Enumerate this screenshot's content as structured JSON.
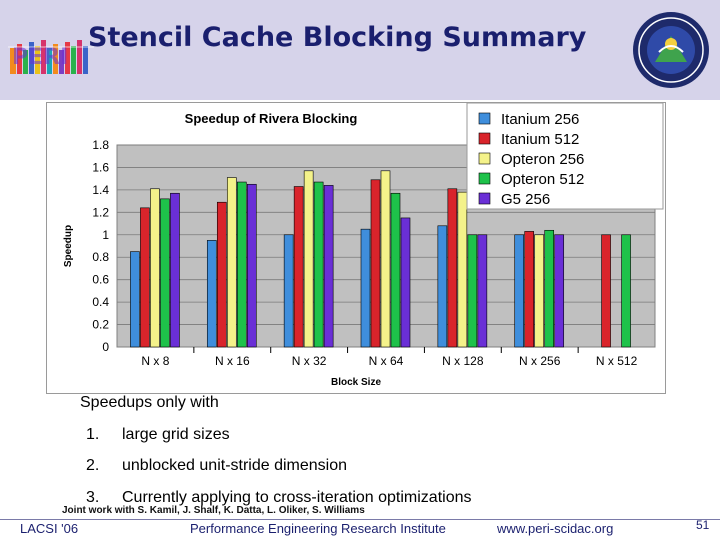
{
  "slide": {
    "title": "Stencil Cache Blocking Summary",
    "logo_text": "PERI"
  },
  "chart_data": {
    "type": "bar",
    "title": "Speedup of Rivera Blocking",
    "xlabel": "Block Size",
    "ylabel": "Speedup",
    "ylim": [
      0,
      1.8
    ],
    "yticks": [
      0,
      0.2,
      0.4,
      0.6,
      0.8,
      1,
      1.2,
      1.4,
      1.6,
      1.8
    ],
    "ytick_labels": [
      "0",
      "0.2",
      "0.4",
      "0.6",
      "0.8",
      "1",
      "1.2",
      "1.4",
      "1.6",
      "1.8"
    ],
    "grid": true,
    "legend_position": "top-right",
    "categories": [
      "N x 8",
      "N x 16",
      "N x 32",
      "N x 64",
      "N x 128",
      "N x 256",
      "N x 512"
    ],
    "series": [
      {
        "name": "Itanium 256",
        "color": "#3f8edc",
        "values": [
          0.85,
          0.95,
          1.0,
          1.05,
          1.08,
          1.0,
          null
        ]
      },
      {
        "name": "Itanium 512",
        "color": "#d9242b",
        "values": [
          1.24,
          1.29,
          1.43,
          1.49,
          1.41,
          1.03,
          1.0
        ]
      },
      {
        "name": "Opteron 256",
        "color": "#f4f28a",
        "values": [
          1.41,
          1.51,
          1.57,
          1.57,
          1.38,
          1.0,
          null
        ]
      },
      {
        "name": "Opteron 512",
        "color": "#1ec24a",
        "values": [
          1.32,
          1.47,
          1.47,
          1.37,
          1.0,
          1.04,
          1.0
        ]
      },
      {
        "name": "G5 256",
        "color": "#6a2fd6",
        "values": [
          1.37,
          1.45,
          1.44,
          1.15,
          1.0,
          1.0,
          null
        ]
      }
    ]
  },
  "body": {
    "intro": "Speedups only with",
    "items": [
      {
        "num": "1.",
        "text": "large grid sizes"
      },
      {
        "num": "2.",
        "text": "unblocked unit-stride dimension"
      },
      {
        "num": "3.",
        "text": "Currently applying to cross-iteration optimizations"
      }
    ],
    "credit": "Joint work with S. Kamil, J. Shalf, K. Datta, L. Oliker, S. Williams"
  },
  "footer": {
    "left": "LACSI '06",
    "center": "Performance Engineering Research Institute",
    "url": "www.peri-scidac.org",
    "page": "51"
  },
  "colors": {
    "header_band": "#d6d3ea",
    "title_color": "#1a1f6e",
    "plot_bg": "#c0c0c0"
  }
}
